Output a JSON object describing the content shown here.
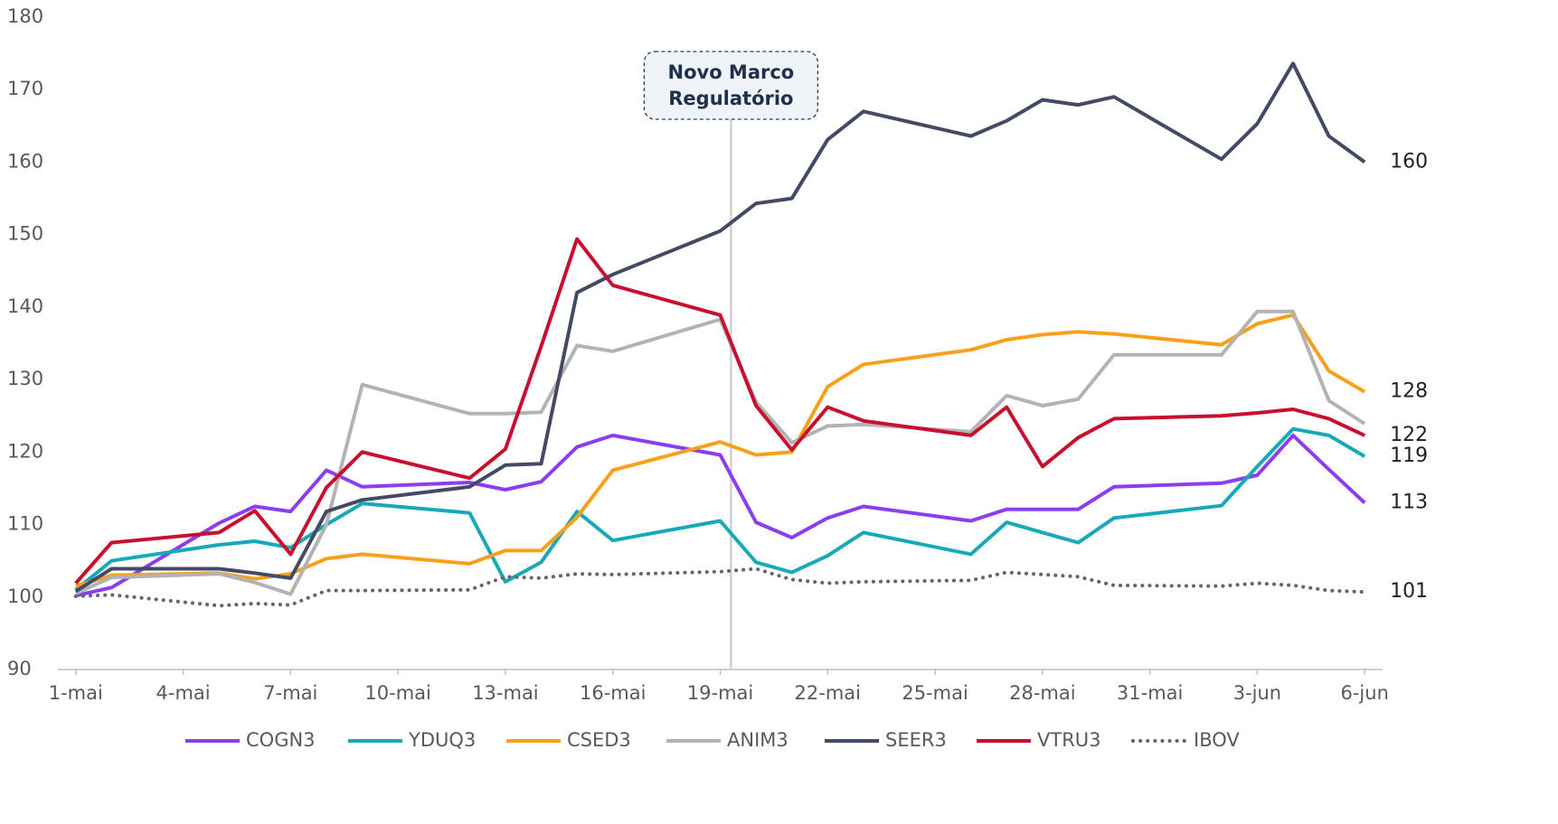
{
  "chart_data": {
    "type": "line",
    "annotation": {
      "text": [
        "Novo Marco",
        "Regulatório"
      ],
      "x": 19.3
    },
    "x": [
      1,
      2,
      5,
      6,
      7,
      8,
      9,
      12,
      13,
      14,
      15,
      16,
      19,
      20,
      21,
      22,
      23,
      26,
      27,
      28,
      29,
      30,
      33,
      34,
      35,
      36,
      37
    ],
    "xlim": [
      0.5,
      37.5
    ],
    "xticks": [
      {
        "value": 1,
        "label": "1-mai"
      },
      {
        "value": 4,
        "label": "4-mai"
      },
      {
        "value": 7,
        "label": "7-mai"
      },
      {
        "value": 10,
        "label": "10-mai"
      },
      {
        "value": 13,
        "label": "13-mai"
      },
      {
        "value": 16,
        "label": "16-mai"
      },
      {
        "value": 19,
        "label": "19-mai"
      },
      {
        "value": 22,
        "label": "22-mai"
      },
      {
        "value": 25,
        "label": "25-mai"
      },
      {
        "value": 28,
        "label": "28-mai"
      },
      {
        "value": 31,
        "label": "31-mai"
      },
      {
        "value": 34,
        "label": "3-jun"
      },
      {
        "value": 37,
        "label": "6-jun"
      }
    ],
    "ylim": [
      90,
      180
    ],
    "yticks": [
      90,
      100,
      110,
      120,
      130,
      140,
      150,
      160,
      170,
      180
    ],
    "grid": false,
    "legend": "bottom",
    "series": [
      {
        "name": "COGN3",
        "color": "#8b3ef0",
        "style": "solid",
        "values": [
          100.2,
          101.3,
          110.2,
          112.5,
          111.8,
          117.5,
          115.2,
          115.8,
          114.8,
          115.9,
          120.7,
          122.3,
          119.6,
          110.3,
          108.2,
          110.9,
          112.5,
          110.5,
          112.1,
          112.1,
          112.1,
          115.2,
          115.7,
          116.8,
          122.3,
          117.6,
          113.0
        ],
        "value_labels": [
          null,
          null,
          null,
          null,
          null,
          null,
          null,
          null,
          null,
          null,
          null,
          null,
          null,
          null,
          null,
          null,
          null,
          null,
          null,
          null,
          null,
          null,
          null,
          null,
          null,
          null,
          "113"
        ]
      },
      {
        "name": "YDUQ3",
        "color": "#17a9b7",
        "style": "solid",
        "values": [
          101.0,
          105.0,
          107.2,
          107.7,
          106.8,
          110.0,
          112.9,
          111.6,
          102.1,
          104.8,
          111.8,
          107.8,
          110.5,
          104.8,
          103.4,
          105.7,
          108.9,
          105.9,
          110.3,
          108.9,
          107.5,
          110.9,
          112.6,
          118.0,
          123.2,
          122.3,
          119.4
        ],
        "value_labels": [
          null,
          null,
          null,
          null,
          null,
          null,
          null,
          null,
          null,
          null,
          null,
          null,
          null,
          null,
          null,
          null,
          null,
          null,
          null,
          null,
          null,
          null,
          null,
          null,
          null,
          null,
          "119"
        ]
      },
      {
        "name": "CSED3",
        "color": "#f8a01a",
        "style": "solid",
        "values": [
          101.5,
          103.0,
          103.3,
          102.5,
          103.2,
          105.3,
          105.9,
          104.6,
          106.4,
          106.4,
          111.0,
          117.5,
          121.4,
          119.6,
          120.0,
          129.0,
          132.1,
          134.1,
          135.5,
          136.2,
          136.6,
          136.3,
          134.8,
          137.7,
          138.9,
          131.2,
          128.3
        ],
        "value_labels": [
          null,
          null,
          null,
          null,
          null,
          null,
          null,
          null,
          null,
          null,
          null,
          null,
          null,
          null,
          null,
          null,
          null,
          null,
          null,
          null,
          null,
          null,
          null,
          null,
          null,
          null,
          "128"
        ]
      },
      {
        "name": "ANIM3",
        "color": "#b3b3b3",
        "style": "solid",
        "values": [
          100.5,
          102.7,
          103.2,
          102.0,
          100.4,
          110.0,
          129.3,
          125.3,
          125.3,
          125.5,
          134.7,
          133.9,
          138.3,
          126.9,
          121.3,
          123.6,
          123.8,
          122.8,
          127.8,
          126.4,
          127.3,
          133.4,
          133.4,
          139.4,
          139.4,
          127.1,
          123.9
        ]
      },
      {
        "name": "SEER3",
        "color": "#434a66",
        "style": "solid",
        "values": [
          100.8,
          103.9,
          103.9,
          103.3,
          102.6,
          111.8,
          113.4,
          115.2,
          118.2,
          118.4,
          142.0,
          144.5,
          150.5,
          154.3,
          155.0,
          163.1,
          167.0,
          163.6,
          165.7,
          168.6,
          167.9,
          169.0,
          160.4,
          165.3,
          173.6,
          163.6,
          160.0
        ],
        "value_labels": [
          null,
          null,
          null,
          null,
          null,
          null,
          null,
          null,
          null,
          null,
          null,
          null,
          null,
          null,
          null,
          null,
          null,
          null,
          null,
          null,
          null,
          null,
          null,
          null,
          null,
          null,
          "160"
        ]
      },
      {
        "name": "VTRU3",
        "color": "#c8102e",
        "style": "solid",
        "values": [
          101.9,
          107.5,
          108.9,
          111.9,
          105.9,
          115.1,
          120.0,
          116.4,
          120.4,
          134.6,
          149.4,
          143.0,
          138.9,
          126.4,
          120.3,
          126.2,
          124.3,
          122.3,
          126.2,
          118.0,
          122.0,
          124.6,
          125.0,
          125.4,
          125.9,
          124.6,
          122.3
        ],
        "value_labels": [
          null,
          null,
          null,
          null,
          null,
          null,
          null,
          null,
          null,
          null,
          null,
          null,
          null,
          null,
          null,
          null,
          null,
          null,
          null,
          null,
          null,
          null,
          null,
          null,
          null,
          null,
          "122"
        ]
      },
      {
        "name": "IBOV",
        "color": "#666666",
        "style": "dotted",
        "values": [
          100.1,
          100.3,
          98.8,
          99.1,
          98.9,
          100.9,
          100.9,
          101.0,
          102.8,
          102.6,
          103.2,
          103.1,
          103.5,
          103.9,
          102.4,
          101.9,
          102.1,
          102.3,
          103.4,
          103.1,
          102.8,
          101.6,
          101.5,
          101.9,
          101.6,
          100.9,
          100.7
        ],
        "value_labels": [
          null,
          null,
          null,
          null,
          null,
          null,
          null,
          null,
          null,
          null,
          null,
          null,
          null,
          null,
          null,
          null,
          null,
          null,
          null,
          null,
          null,
          null,
          null,
          null,
          null,
          null,
          "101"
        ]
      }
    ]
  }
}
